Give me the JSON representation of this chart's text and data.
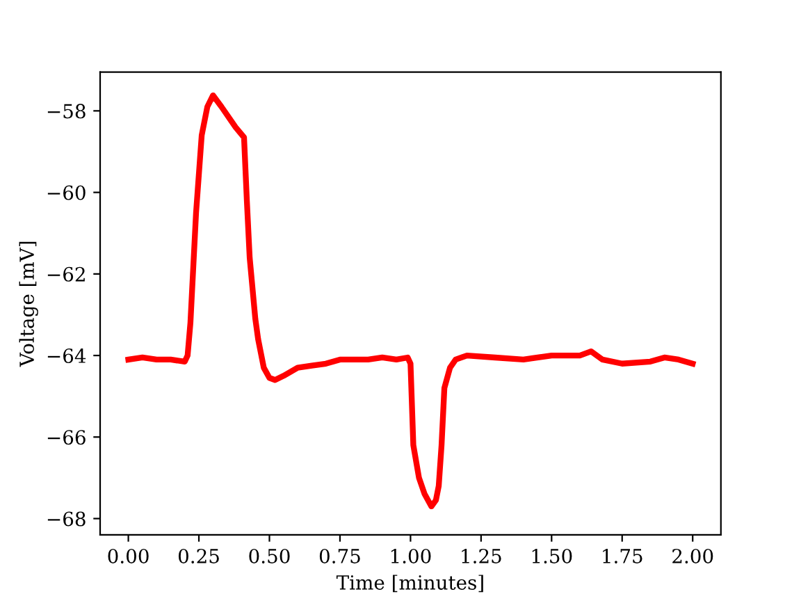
{
  "chart_data": {
    "type": "line",
    "xlabel": "Time [minutes]",
    "ylabel": "Voltage [mV]",
    "xlim": [
      -0.1,
      2.1
    ],
    "ylim": [
      -68.4,
      -57.05
    ],
    "xticks": [
      {
        "value": 0,
        "label": "0.00"
      },
      {
        "value": 0.25,
        "label": "0.25"
      },
      {
        "value": 0.5,
        "label": "0.50"
      },
      {
        "value": 0.75,
        "label": "0.75"
      },
      {
        "value": 1,
        "label": "1.00"
      },
      {
        "value": 1.25,
        "label": "1.25"
      },
      {
        "value": 1.5,
        "label": "1.50"
      },
      {
        "value": 1.75,
        "label": "1.75"
      },
      {
        "value": 2,
        "label": "2.00"
      }
    ],
    "yticks": [
      {
        "value": -68,
        "label": "−68"
      },
      {
        "value": -66,
        "label": "−66"
      },
      {
        "value": -64,
        "label": "−64"
      },
      {
        "value": -62,
        "label": "−62"
      },
      {
        "value": -60,
        "label": "−60"
      },
      {
        "value": -58,
        "label": "−58"
      }
    ],
    "grid": false,
    "marker": "none",
    "line_style": "solid",
    "series": [
      {
        "color": "#ff0000",
        "x": [
          0,
          0.05,
          0.1,
          0.15,
          0.2,
          0.21,
          0.22,
          0.24,
          0.26,
          0.28,
          0.3,
          0.33,
          0.36,
          0.38,
          0.41,
          0.42,
          0.43,
          0.45,
          0.46,
          0.48,
          0.5,
          0.52,
          0.55,
          0.6,
          0.65,
          0.7,
          0.75,
          0.8,
          0.85,
          0.9,
          0.95,
          0.99,
          1.0,
          1.01,
          1.03,
          1.05,
          1.074,
          1.09,
          1.1,
          1.11,
          1.12,
          1.14,
          1.16,
          1.2,
          1.3,
          1.4,
          1.5,
          1.6,
          1.64,
          1.68,
          1.75,
          1.85,
          1.9,
          1.95,
          2.0
        ],
        "values": [
          -64.1,
          -64.05,
          -64.1,
          -64.1,
          -64.15,
          -64.0,
          -63.2,
          -60.5,
          -58.6,
          -57.9,
          -57.62,
          -57.9,
          -58.2,
          -58.4,
          -58.65,
          -60.2,
          -61.6,
          -63.1,
          -63.6,
          -64.3,
          -64.55,
          -64.6,
          -64.5,
          -64.3,
          -64.25,
          -64.2,
          -64.1,
          -64.1,
          -64.1,
          -64.05,
          -64.1,
          -64.05,
          -64.2,
          -66.2,
          -67.0,
          -67.4,
          -67.7,
          -67.55,
          -67.2,
          -66.2,
          -64.8,
          -64.3,
          -64.1,
          -64.0,
          -64.05,
          -64.1,
          -64.0,
          -64.0,
          -63.9,
          -64.1,
          -64.2,
          -64.15,
          -64.05,
          -64.1,
          -64.2
        ]
      }
    ]
  }
}
